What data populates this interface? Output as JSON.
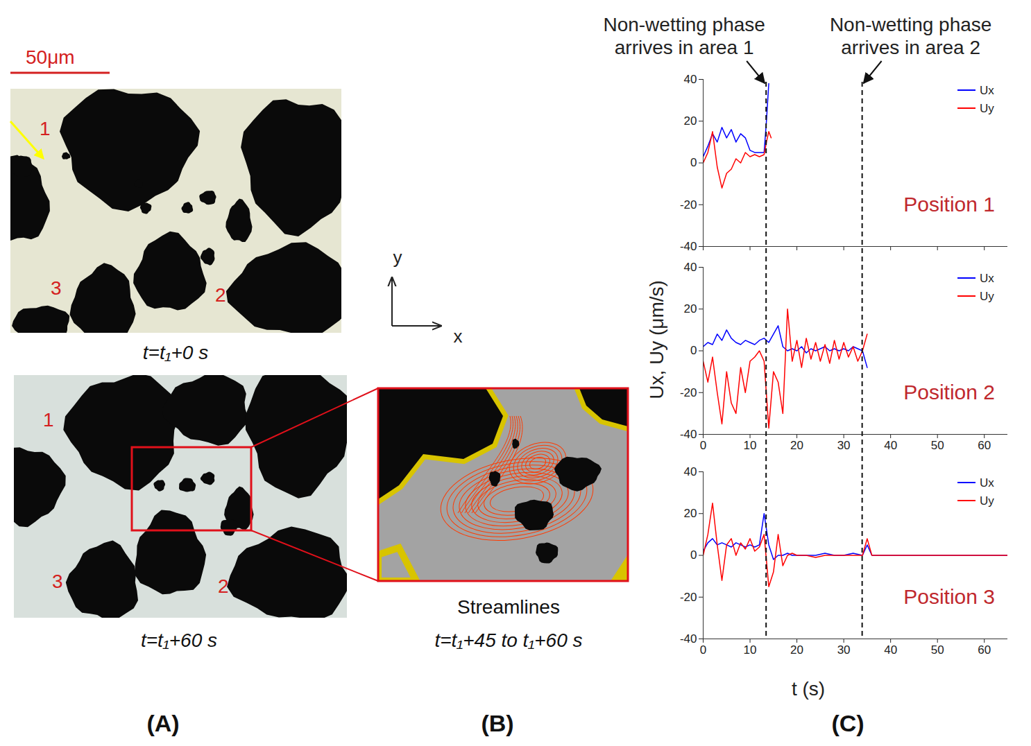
{
  "figure": {
    "A": {
      "label": "(A)",
      "scale_bar": "50μm",
      "region_labels": [
        "1",
        "2",
        "3"
      ],
      "captions": [
        "t=t₁+0 s",
        "t=t₁+60 s"
      ]
    },
    "B": {
      "label": "(B)",
      "title": "Streamlines",
      "caption": "t=t₁+45 to t₁+60 s"
    },
    "axes_icon": {
      "x": "x",
      "y": "y"
    },
    "C": {
      "label": "(C)",
      "xlabel": "t (s)",
      "ylabel": "Ux, Uy (μm/s)",
      "events": [
        {
          "lines": [
            "Non-wetting phase",
            "arrives in area 1"
          ],
          "t": 13.5
        },
        {
          "lines": [
            "Non-wetting phase",
            "arrives in area 2"
          ],
          "t": 34
        }
      ]
    }
  },
  "chart_data": [
    {
      "type": "line",
      "title": "Position 1",
      "legend": "top-right",
      "tick_labels": "y",
      "xlim": [
        0,
        65
      ],
      "xticks": [
        0,
        10,
        20,
        30,
        40,
        50,
        60
      ],
      "ylim": [
        -40,
        40
      ],
      "yticks": [
        -40,
        -20,
        0,
        20,
        40
      ],
      "x": [
        0,
        1,
        2,
        3,
        4,
        5,
        6,
        7,
        8,
        9,
        10,
        11,
        12,
        13,
        13.5,
        14,
        14.5
      ],
      "series": [
        {
          "name": "Ux",
          "color": "#0000ff",
          "values": [
            3,
            8,
            14,
            10,
            17,
            12,
            16,
            10,
            14,
            12,
            6,
            5,
            5,
            5,
            20,
            38,
            null
          ]
        },
        {
          "name": "Uy",
          "color": "#ff0000",
          "values": [
            0,
            5,
            15,
            -2,
            -12,
            -5,
            -3,
            2,
            0,
            5,
            3,
            4,
            3,
            4,
            10,
            15,
            12
          ]
        }
      ]
    },
    {
      "type": "line",
      "title": "Position 2",
      "legend": "top-right",
      "xlim": [
        0,
        65
      ],
      "xticks": [
        0,
        10,
        20,
        30,
        40,
        50,
        60
      ],
      "ylim": [
        -40,
        40
      ],
      "yticks": [
        -40,
        -20,
        0,
        20,
        40
      ],
      "x": [
        0,
        1,
        2,
        3,
        4,
        5,
        6,
        7,
        8,
        9,
        10,
        11,
        12,
        13,
        14,
        15,
        16,
        17,
        18,
        19,
        20,
        21,
        22,
        23,
        24,
        25,
        26,
        27,
        28,
        29,
        30,
        31,
        32,
        33,
        34,
        35
      ],
      "series": [
        {
          "name": "Ux",
          "color": "#0000ff",
          "values": [
            2,
            4,
            3,
            8,
            5,
            10,
            6,
            4,
            3,
            5,
            4,
            3,
            5,
            6,
            4,
            8,
            12,
            2,
            0,
            1,
            0,
            2,
            -1,
            1,
            0,
            1,
            2,
            0,
            1,
            0,
            1,
            0,
            2,
            1,
            0,
            -8
          ]
        },
        {
          "name": "Uy",
          "color": "#ff0000",
          "values": [
            -5,
            -15,
            -3,
            -20,
            -35,
            -10,
            -25,
            -30,
            -8,
            -20,
            -5,
            -3,
            0,
            -5,
            -37,
            -10,
            -15,
            -30,
            20,
            -5,
            5,
            -8,
            6,
            -4,
            4,
            -5,
            3,
            -6,
            5,
            -4,
            4,
            -3,
            2,
            -5,
            0,
            8
          ]
        }
      ]
    },
    {
      "type": "line",
      "title": "Position 3",
      "legend": "top-right",
      "xlim": [
        0,
        65
      ],
      "xticks": [
        0,
        10,
        20,
        30,
        40,
        50,
        60
      ],
      "ylim": [
        -40,
        40
      ],
      "yticks": [
        -40,
        -20,
        0,
        20,
        40
      ],
      "x": [
        0,
        1,
        2,
        3,
        4,
        5,
        6,
        7,
        8,
        9,
        10,
        11,
        12,
        13,
        14,
        15,
        16,
        17,
        18,
        19,
        20,
        22,
        24,
        26,
        28,
        30,
        32,
        34,
        35,
        36,
        38,
        40,
        42,
        44,
        46,
        48,
        50,
        52,
        54,
        56,
        58,
        60,
        62,
        64,
        65
      ],
      "series": [
        {
          "name": "Ux",
          "color": "#0000ff",
          "values": [
            2,
            6,
            8,
            5,
            6,
            5,
            4,
            6,
            5,
            4,
            5,
            4,
            5,
            20,
            5,
            -2,
            0,
            0,
            1,
            0,
            0,
            0,
            0,
            1,
            0,
            0,
            1,
            0,
            5,
            0,
            0,
            0,
            0,
            0,
            0,
            0,
            0,
            0,
            0,
            0,
            0,
            0,
            0,
            0,
            0
          ]
        },
        {
          "name": "Uy",
          "color": "#ff0000",
          "values": [
            0,
            10,
            25,
            5,
            -12,
            5,
            8,
            0,
            6,
            3,
            8,
            2,
            4,
            10,
            -15,
            -8,
            10,
            -5,
            0,
            1,
            0,
            0,
            -1,
            0,
            0,
            0,
            0,
            0,
            8,
            0,
            0,
            0,
            0,
            0,
            0,
            0,
            0,
            0,
            0,
            0,
            0,
            0,
            0,
            0,
            0
          ]
        }
      ]
    }
  ]
}
